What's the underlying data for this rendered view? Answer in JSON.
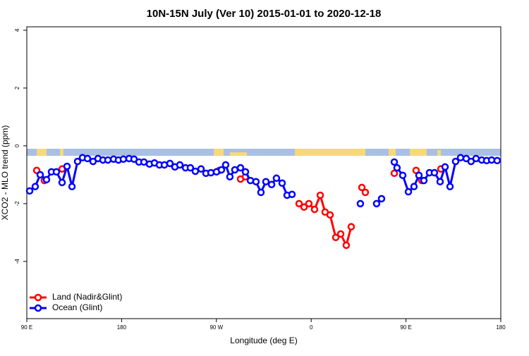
{
  "chart_data": {
    "type": "line",
    "title": "10N-15N July (Ver 10)   2015-01-01 to 2020-12-18",
    "x_label": "Longitude (deg E)",
    "y_label": "XCO2 - MLO trend (ppm)",
    "xlim": [
      90,
      540
    ],
    "xticks": [
      {
        "value": 90,
        "label": "90 E"
      },
      180,
      {
        "value": 270,
        "label": "90 W"
      },
      {
        "value": 360,
        "label": "0"
      },
      {
        "value": 450,
        "label": "90 E"
      },
      {
        "value": 540,
        "label": "180"
      }
    ],
    "ylim": [
      -5.98,
      4.12
    ],
    "yticks": [
      -4,
      -2,
      0,
      2,
      4
    ],
    "legend": "bottom-left",
    "series": [
      {
        "name": "Land (Nadir&Glint)",
        "color": "#ff0000",
        "x": [
          99.4,
          106.7,
          null,
          123.5,
          null,
          272.8,
          null,
          292.9,
          297.6,
          null,
          348.5,
          353.2,
          357.8,
          363.2,
          368.6,
          373.2,
          377.9,
          383.3,
          388.0,
          393.3,
          398.0,
          null,
          408.1,
          411.4,
          null,
          438.9,
          null,
          459.6,
          465.0,
          null,
          483.1
        ],
        "values": [
          -0.85,
          -1.2,
          null,
          -0.8,
          null,
          -0.85,
          null,
          -1.15,
          -1.07,
          null,
          -2.0,
          -2.12,
          -2.0,
          -2.2,
          -1.71,
          -2.29,
          -2.39,
          -3.17,
          -3.05,
          -3.44,
          -2.8,
          null,
          -1.44,
          -1.61,
          null,
          -0.95,
          null,
          -0.85,
          -1.2,
          null,
          -0.8
        ]
      },
      {
        "name": "Ocean (Glint)",
        "color": "#0000ff",
        "x": [
          92.7,
          98.0,
          102.7,
          108.7,
          113.4,
          118.1,
          123.5,
          128.2,
          132.9,
          138.2,
          142.9,
          147.6,
          152.9,
          157.6,
          162.3,
          167.0,
          172.4,
          177.0,
          181.7,
          187.1,
          191.8,
          196.5,
          201.2,
          206.5,
          211.2,
          215.9,
          220.6,
          225.9,
          230.6,
          235.3,
          240.7,
          245.3,
          250.0,
          255.4,
          260.1,
          264.8,
          270.1,
          274.8,
          278.8,
          282.8,
          287.5,
          292.9,
          297.6,
          302.3,
          307.6,
          312.3,
          317.0,
          322.4,
          327.0,
          332.4,
          337.1,
          341.8,
          null,
          406.7,
          null,
          422.1,
          426.8,
          null,
          438.9,
          441.5,
          446.9,
          452.3,
          457.6,
          462.3,
          467.0,
          472.3,
          477.0,
          482.4,
          487.1,
          491.8,
          497.1,
          501.8,
          507.2,
          511.8,
          516.5,
          521.9,
          526.6,
          531.3,
          536.6
        ],
        "values": [
          -1.56,
          -1.41,
          -1.0,
          -1.17,
          -0.9,
          -0.9,
          -1.27,
          -0.71,
          -1.41,
          -0.54,
          -0.41,
          -0.44,
          -0.54,
          -0.44,
          -0.49,
          -0.49,
          -0.46,
          -0.49,
          -0.46,
          -0.44,
          -0.46,
          -0.56,
          -0.56,
          -0.63,
          -0.59,
          -0.66,
          -0.66,
          -0.61,
          -0.73,
          -0.66,
          -0.76,
          -0.76,
          -0.88,
          -0.8,
          -0.95,
          -0.93,
          -0.9,
          -0.83,
          -0.66,
          -1.07,
          -0.83,
          -0.76,
          -0.9,
          -1.2,
          -1.24,
          -1.61,
          -1.24,
          -1.34,
          -1.12,
          -1.29,
          -1.71,
          -1.68,
          null,
          -2.0,
          null,
          -2.0,
          -1.83,
          null,
          -0.56,
          -0.76,
          -1.02,
          -1.59,
          -1.41,
          -1.02,
          -1.2,
          -0.93,
          -0.93,
          -1.24,
          -0.73,
          -1.41,
          -0.54,
          -0.41,
          -0.44,
          -0.54,
          -0.44,
          -0.49,
          -0.51,
          -0.49,
          -0.51
        ]
      }
    ]
  }
}
